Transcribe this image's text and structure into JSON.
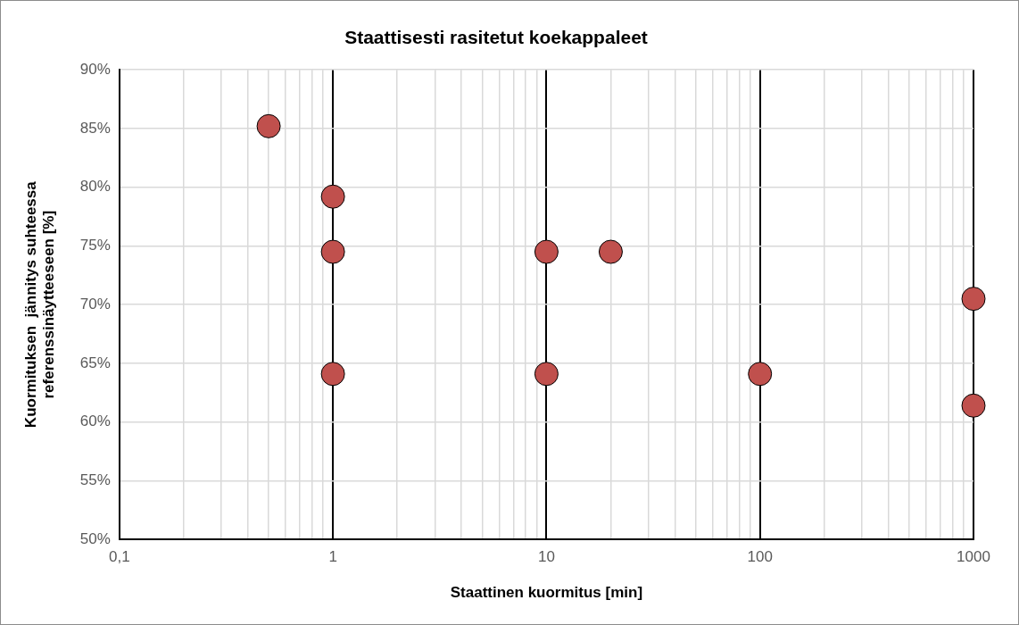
{
  "chart_data": {
    "type": "scatter",
    "title": "Staattisesti rasitetut koekappaleet",
    "xlabel": "Staattinen kuormitus [min]",
    "ylabel": "Kuormituksen  jännitys suhteessa\nreferenssinäytteeseen [%]",
    "log": "x",
    "grid": true,
    "legend": false,
    "marker": "circle",
    "xlim": [
      0.1,
      1000
    ],
    "xticks": [
      {
        "value": 0.1,
        "label": "0,1"
      },
      {
        "value": 0.2,
        "label": null
      },
      {
        "value": 0.3,
        "label": null
      },
      {
        "value": 0.4,
        "label": null
      },
      {
        "value": 0.5,
        "label": null
      },
      {
        "value": 0.6,
        "label": null
      },
      {
        "value": 0.7,
        "label": null
      },
      {
        "value": 0.8,
        "label": null
      },
      {
        "value": 0.9,
        "label": null
      },
      1,
      {
        "value": 2,
        "label": null
      },
      {
        "value": 3,
        "label": null
      },
      {
        "value": 4,
        "label": null
      },
      {
        "value": 5,
        "label": null
      },
      {
        "value": 6,
        "label": null
      },
      {
        "value": 7,
        "label": null
      },
      {
        "value": 8,
        "label": null
      },
      {
        "value": 9,
        "label": null
      },
      10,
      {
        "value": 20,
        "label": null
      },
      {
        "value": 30,
        "label": null
      },
      {
        "value": 40,
        "label": null
      },
      {
        "value": 50,
        "label": null
      },
      {
        "value": 60,
        "label": null
      },
      {
        "value": 70,
        "label": null
      },
      {
        "value": 80,
        "label": null
      },
      {
        "value": 90,
        "label": null
      },
      100,
      {
        "value": 200,
        "label": null
      },
      {
        "value": 300,
        "label": null
      },
      {
        "value": 400,
        "label": null
      },
      {
        "value": 500,
        "label": null
      },
      {
        "value": 600,
        "label": null
      },
      {
        "value": 700,
        "label": null
      },
      {
        "value": 800,
        "label": null
      },
      {
        "value": 900,
        "label": null
      },
      1000
    ],
    "ylim": [
      50,
      90
    ],
    "yticks": [
      {
        "value": 50,
        "label": "50%"
      },
      {
        "value": 55,
        "label": "55%"
      },
      {
        "value": 60,
        "label": "60%"
      },
      {
        "value": 65,
        "label": "65%"
      },
      {
        "value": 70,
        "label": "70%"
      },
      {
        "value": 75,
        "label": "75%"
      },
      {
        "value": 80,
        "label": "80%"
      },
      {
        "value": 85,
        "label": "85%"
      },
      {
        "value": 90,
        "label": "90%"
      }
    ],
    "series": [
      {
        "color": "#c0504d",
        "x": [
          0.5,
          1,
          1,
          10,
          20,
          1000,
          1,
          10,
          100,
          1000
        ],
        "values": [
          85.2,
          79.2,
          74.5,
          74.5,
          74.5,
          70.5,
          64.1,
          64.1,
          64.1,
          61.4
        ]
      }
    ]
  }
}
